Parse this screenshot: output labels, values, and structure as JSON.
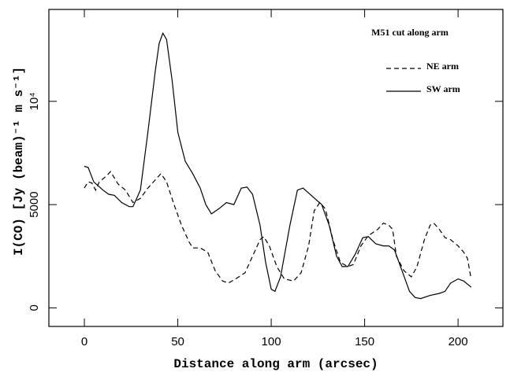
{
  "chart_data": {
    "type": "line",
    "title": "M51 cut along arm",
    "x_label": "Distance along arm (arcsec)",
    "y_label": "I(CO)  [Jy (beam)⁻¹  m s⁻¹]",
    "xlim": [
      -19,
      224
    ],
    "ylim": [
      -900,
      14450
    ],
    "xticks": [
      0,
      50,
      100,
      150,
      200
    ],
    "yticks": [
      0,
      5000,
      {
        "value": 10000,
        "label": "10⁴"
      }
    ],
    "legend": "upper right",
    "series": [
      {
        "name": "NE arm",
        "color": "#000000",
        "dash": "dashed",
        "x": [
          0,
          2,
          4,
          6,
          8,
          12,
          14,
          18,
          22,
          26,
          30,
          34,
          38,
          41,
          44,
          48,
          52,
          56,
          58,
          62,
          66,
          70,
          74,
          77,
          81,
          86,
          90,
          94,
          96,
          99,
          103,
          107,
          112,
          116,
          120,
          123,
          126,
          129,
          133,
          137,
          141,
          144,
          148,
          152,
          157,
          160,
          163,
          165,
          167,
          171,
          175,
          178,
          182,
          185,
          187,
          190,
          193,
          196,
          200,
          203,
          205,
          207
        ],
        "values": [
          5800,
          6100,
          6050,
          5700,
          6100,
          6400,
          6600,
          6000,
          5700,
          5100,
          5300,
          5800,
          6200,
          6500,
          6100,
          5000,
          4000,
          3200,
          2900,
          2900,
          2700,
          1800,
          1300,
          1200,
          1400,
          1700,
          2500,
          3300,
          3450,
          3000,
          2000,
          1400,
          1300,
          1700,
          3000,
          4700,
          5100,
          4800,
          3300,
          2200,
          2000,
          2100,
          3000,
          3500,
          3800,
          4100,
          4000,
          3800,
          2500,
          1800,
          1500,
          2000,
          3300,
          4000,
          4100,
          3800,
          3400,
          3300,
          3000,
          2700,
          2400,
          1400
        ]
      },
      {
        "name": "SW arm",
        "color": "#000000",
        "dash": "solid",
        "x": [
          0,
          2,
          5,
          10,
          13,
          16,
          20,
          24,
          26,
          30,
          34,
          38,
          40,
          42,
          44,
          47,
          50,
          54,
          58,
          62,
          65,
          68,
          72,
          76,
          80,
          84,
          87,
          90,
          94,
          97,
          100,
          102,
          105,
          110,
          114,
          117,
          122,
          127,
          131,
          135,
          138,
          141,
          145,
          149,
          152,
          156,
          160,
          163,
          166,
          170,
          174,
          177,
          180,
          185,
          190,
          193,
          196,
          200,
          203,
          207
        ],
        "values": [
          6850,
          6800,
          6100,
          5700,
          5500,
          5450,
          5100,
          4900,
          4900,
          5700,
          8500,
          11500,
          12800,
          13300,
          13000,
          11000,
          8500,
          7100,
          6500,
          5800,
          5000,
          4550,
          4800,
          5100,
          5000,
          5800,
          5850,
          5500,
          4000,
          2200,
          900,
          800,
          1500,
          4000,
          5700,
          5800,
          5400,
          5000,
          4000,
          2500,
          2000,
          2000,
          2600,
          3400,
          3450,
          3100,
          3000,
          3000,
          2800,
          1800,
          800,
          500,
          450,
          600,
          700,
          800,
          1200,
          1400,
          1300,
          1000
        ]
      }
    ]
  }
}
